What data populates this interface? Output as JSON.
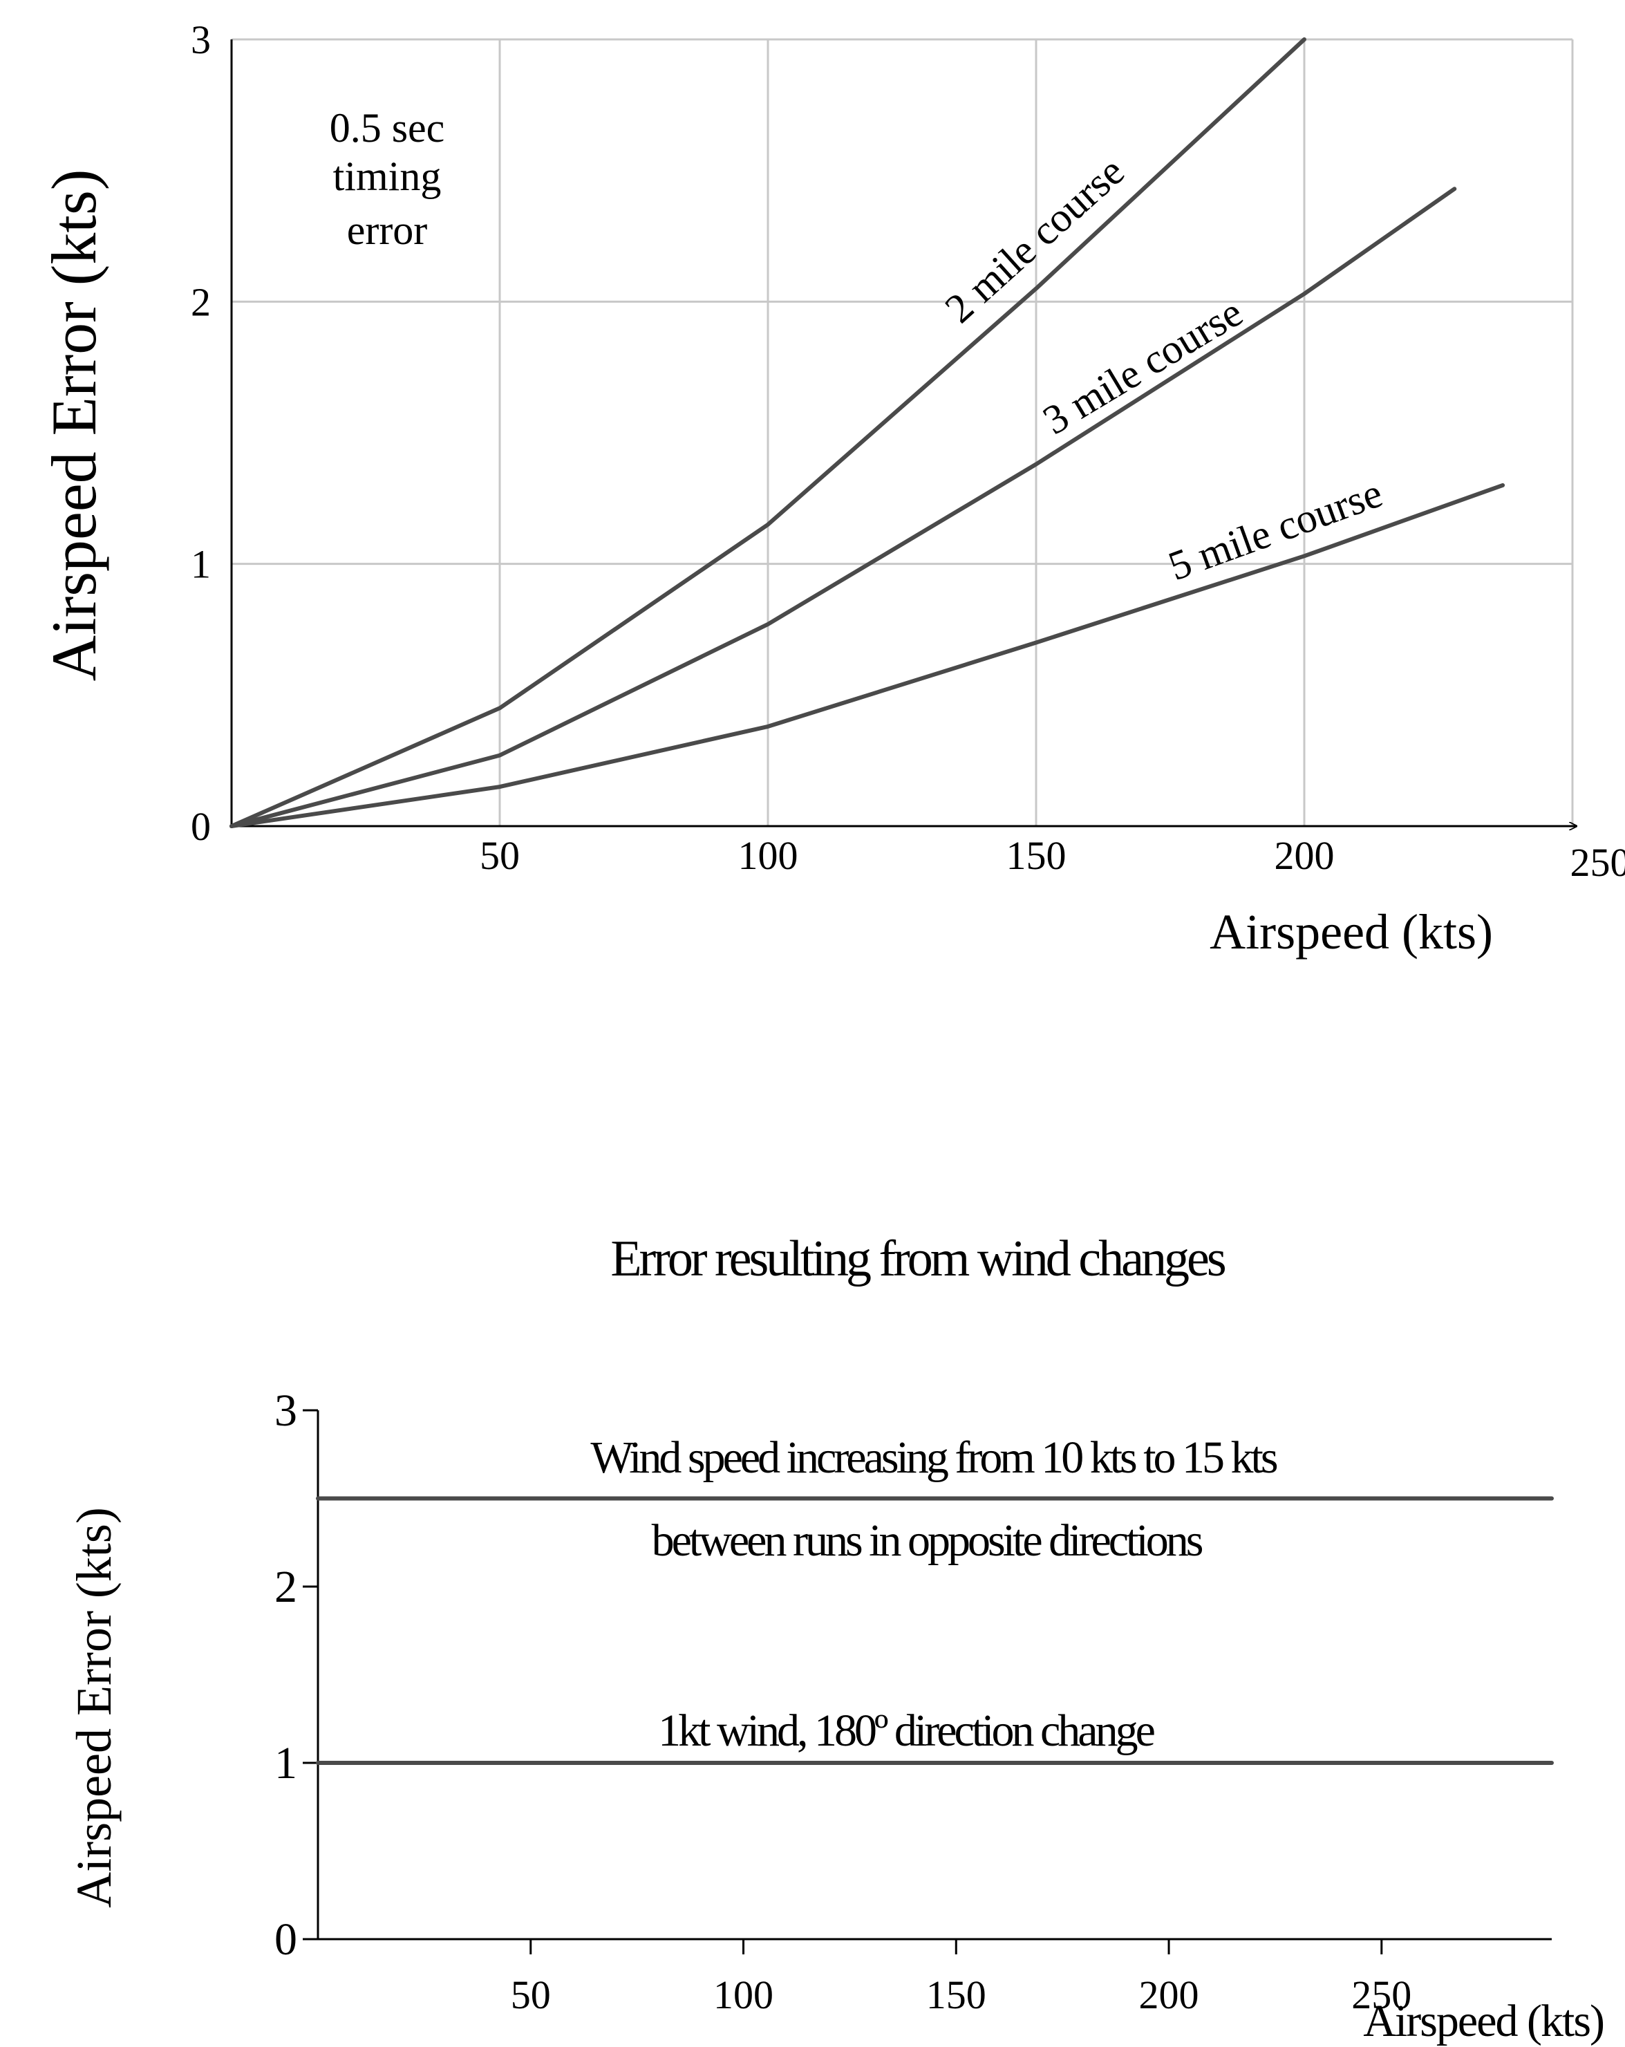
{
  "chart_data": [
    {
      "type": "line",
      "title": "",
      "xlabel": "Airspeed (kts)",
      "ylabel": "Airspeed Error (kts)",
      "xlim": [
        0,
        250
      ],
      "ylim": [
        0,
        3
      ],
      "xticks": [
        "50",
        "100",
        "150",
        "200",
        "250"
      ],
      "yticks": [
        "0",
        "1",
        "2",
        "3"
      ],
      "grid": true,
      "annotation": [
        "0.5 sec",
        "timing",
        "error"
      ],
      "series": [
        {
          "name": "2 mile course",
          "x": [
            0,
            50,
            100,
            150,
            200
          ],
          "y": [
            0,
            0.45,
            1.15,
            2.05,
            3.0
          ]
        },
        {
          "name": "3 mile course",
          "x": [
            0,
            50,
            100,
            150,
            200,
            228
          ],
          "y": [
            0,
            0.27,
            0.77,
            1.38,
            2.03,
            2.43
          ]
        },
        {
          "name": "5 mile course",
          "x": [
            0,
            50,
            100,
            150,
            200,
            237
          ],
          "y": [
            0,
            0.15,
            0.38,
            0.7,
            1.03,
            1.3
          ]
        }
      ]
    },
    {
      "type": "line",
      "title": "Error resulting from wind changes",
      "xlabel": "Airspeed (kts)",
      "ylabel": "Airspeed Error (kts)",
      "xlim": [
        0,
        290
      ],
      "ylim": [
        0,
        3
      ],
      "xticks": [
        "50",
        "100",
        "150",
        "200",
        "250"
      ],
      "yticks": [
        "0",
        "1",
        "2",
        "3"
      ],
      "grid": false,
      "series": [
        {
          "name": "Wind speed increasing from 10 kts to 15 kts between runs in opposite directions",
          "x": [
            0,
            290
          ],
          "y": [
            2.5,
            2.5
          ]
        },
        {
          "name": "1kt wind, 180º direction change",
          "x": [
            0,
            290
          ],
          "y": [
            1.0,
            1.0
          ]
        }
      ],
      "labels": {
        "wind_line1": "Wind speed increasing from 10 kts to 15 kts",
        "wind_line2": "between runs in opposite directions",
        "direction_change": "1kt wind, 180º direction change"
      }
    }
  ]
}
